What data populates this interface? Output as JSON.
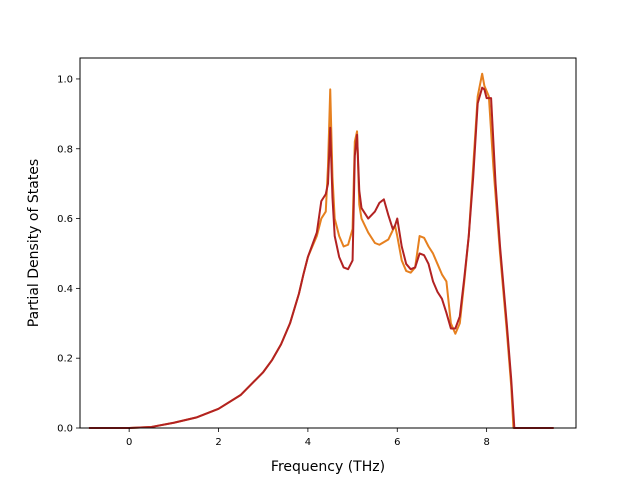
{
  "chart_data": {
    "type": "line",
    "title": "",
    "xlabel": "Frequency (THz)",
    "ylabel": "Partial Density of States",
    "xlim": [
      -1.1,
      10.0
    ],
    "ylim": [
      0.0,
      1.06
    ],
    "xticks": [
      0,
      2,
      4,
      6,
      8
    ],
    "yticks": [
      0.0,
      0.2,
      0.4,
      0.6,
      0.8,
      1.0
    ],
    "xtick_labels": [
      "0",
      "2",
      "4",
      "6",
      "8"
    ],
    "ytick_labels": [
      "0.0",
      "0.2",
      "0.4",
      "0.6",
      "0.8",
      "1.0"
    ],
    "grid": false,
    "legend": "none",
    "series": [
      {
        "color": "#e6801f",
        "points": [
          [
            -0.9,
            0.0
          ],
          [
            0.0,
            0.0
          ],
          [
            0.5,
            0.003
          ],
          [
            1.0,
            0.015
          ],
          [
            1.5,
            0.03
          ],
          [
            2.0,
            0.055
          ],
          [
            2.5,
            0.095
          ],
          [
            3.0,
            0.16
          ],
          [
            3.2,
            0.195
          ],
          [
            3.4,
            0.24
          ],
          [
            3.6,
            0.3
          ],
          [
            3.8,
            0.385
          ],
          [
            3.9,
            0.44
          ],
          [
            4.0,
            0.49
          ],
          [
            4.2,
            0.55
          ],
          [
            4.3,
            0.6
          ],
          [
            4.4,
            0.62
          ],
          [
            4.45,
            0.75
          ],
          [
            4.5,
            0.97
          ],
          [
            4.55,
            0.72
          ],
          [
            4.6,
            0.6
          ],
          [
            4.7,
            0.55
          ],
          [
            4.8,
            0.52
          ],
          [
            4.9,
            0.525
          ],
          [
            5.0,
            0.57
          ],
          [
            5.05,
            0.82
          ],
          [
            5.1,
            0.85
          ],
          [
            5.15,
            0.64
          ],
          [
            5.2,
            0.6
          ],
          [
            5.35,
            0.56
          ],
          [
            5.5,
            0.53
          ],
          [
            5.6,
            0.525
          ],
          [
            5.8,
            0.54
          ],
          [
            5.95,
            0.58
          ],
          [
            6.0,
            0.55
          ],
          [
            6.1,
            0.48
          ],
          [
            6.2,
            0.45
          ],
          [
            6.3,
            0.445
          ],
          [
            6.4,
            0.46
          ],
          [
            6.5,
            0.55
          ],
          [
            6.6,
            0.545
          ],
          [
            6.7,
            0.52
          ],
          [
            6.8,
            0.5
          ],
          [
            6.9,
            0.47
          ],
          [
            7.0,
            0.44
          ],
          [
            7.1,
            0.42
          ],
          [
            7.2,
            0.3
          ],
          [
            7.3,
            0.27
          ],
          [
            7.4,
            0.3
          ],
          [
            7.5,
            0.42
          ],
          [
            7.6,
            0.55
          ],
          [
            7.7,
            0.75
          ],
          [
            7.8,
            0.95
          ],
          [
            7.9,
            1.015
          ],
          [
            7.95,
            0.98
          ],
          [
            8.05,
            0.95
          ],
          [
            8.15,
            0.75
          ],
          [
            8.3,
            0.5
          ],
          [
            8.45,
            0.28
          ],
          [
            8.55,
            0.12
          ],
          [
            8.6,
            0.0
          ],
          [
            9.5,
            0.0
          ]
        ]
      },
      {
        "color": "#b22222",
        "points": [
          [
            -0.9,
            0.0
          ],
          [
            0.0,
            0.0
          ],
          [
            0.5,
            0.003
          ],
          [
            1.0,
            0.015
          ],
          [
            1.5,
            0.03
          ],
          [
            2.0,
            0.055
          ],
          [
            2.5,
            0.095
          ],
          [
            3.0,
            0.16
          ],
          [
            3.2,
            0.195
          ],
          [
            3.4,
            0.24
          ],
          [
            3.6,
            0.3
          ],
          [
            3.8,
            0.385
          ],
          [
            3.9,
            0.44
          ],
          [
            4.0,
            0.49
          ],
          [
            4.2,
            0.56
          ],
          [
            4.3,
            0.65
          ],
          [
            4.4,
            0.67
          ],
          [
            4.45,
            0.7
          ],
          [
            4.5,
            0.86
          ],
          [
            4.55,
            0.66
          ],
          [
            4.6,
            0.55
          ],
          [
            4.7,
            0.49
          ],
          [
            4.8,
            0.46
          ],
          [
            4.9,
            0.455
          ],
          [
            5.0,
            0.48
          ],
          [
            5.05,
            0.78
          ],
          [
            5.1,
            0.84
          ],
          [
            5.15,
            0.68
          ],
          [
            5.2,
            0.63
          ],
          [
            5.35,
            0.6
          ],
          [
            5.5,
            0.62
          ],
          [
            5.6,
            0.645
          ],
          [
            5.7,
            0.655
          ],
          [
            5.8,
            0.61
          ],
          [
            5.9,
            0.57
          ],
          [
            5.95,
            0.58
          ],
          [
            6.0,
            0.6
          ],
          [
            6.1,
            0.52
          ],
          [
            6.2,
            0.47
          ],
          [
            6.3,
            0.455
          ],
          [
            6.4,
            0.46
          ],
          [
            6.5,
            0.5
          ],
          [
            6.6,
            0.495
          ],
          [
            6.7,
            0.47
          ],
          [
            6.8,
            0.42
          ],
          [
            6.9,
            0.39
          ],
          [
            7.0,
            0.37
          ],
          [
            7.1,
            0.33
          ],
          [
            7.2,
            0.285
          ],
          [
            7.3,
            0.285
          ],
          [
            7.4,
            0.32
          ],
          [
            7.5,
            0.43
          ],
          [
            7.6,
            0.55
          ],
          [
            7.7,
            0.72
          ],
          [
            7.8,
            0.93
          ],
          [
            7.9,
            0.975
          ],
          [
            7.95,
            0.97
          ],
          [
            8.0,
            0.945
          ],
          [
            8.1,
            0.945
          ],
          [
            8.2,
            0.7
          ],
          [
            8.3,
            0.52
          ],
          [
            8.45,
            0.3
          ],
          [
            8.55,
            0.14
          ],
          [
            8.62,
            0.0
          ],
          [
            9.5,
            0.0
          ]
        ]
      }
    ]
  }
}
